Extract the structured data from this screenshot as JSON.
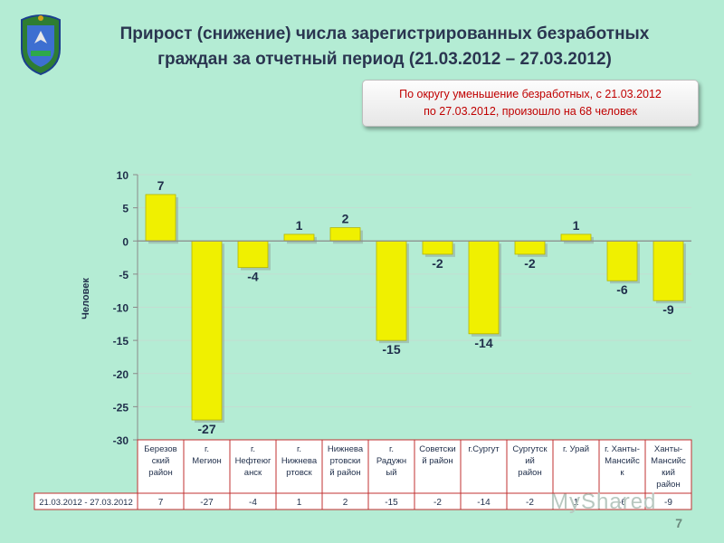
{
  "header": {
    "title_line1": "Прирост (снижение) числа зарегистрированных безработных",
    "title_line2": "граждан за отчетный период (21.03.2012 – 27.03.2012)"
  },
  "note": {
    "line1": "По округу уменьшение безработных, с 21.03.2012",
    "line2": "по 27.03.2012, произошло на 68 человек"
  },
  "page_number": "7",
  "watermark": "MyShared",
  "chart_data": {
    "type": "bar",
    "ylabel": "Человек",
    "ylim": [
      -30,
      10
    ],
    "yticks": [
      10,
      5,
      0,
      -5,
      -10,
      -15,
      -20,
      -25,
      -30
    ],
    "bar_color": "#f0f000",
    "categories": [
      [
        "Березов",
        "ский",
        "район"
      ],
      [
        "г.",
        "Мегион"
      ],
      [
        "г.",
        "Нефтеюг",
        "анск"
      ],
      [
        "г.",
        "Нижнева",
        "ртовск"
      ],
      [
        "Нижнева",
        "ртовски",
        "й район"
      ],
      [
        "г.",
        "Радужн",
        "ый"
      ],
      [
        "Советски",
        "й район"
      ],
      [
        "г.Сургут"
      ],
      [
        "Сургутск",
        "ий",
        "район"
      ],
      [
        "г. Урай"
      ],
      [
        "г. Ханты-",
        "Мансийс",
        "к"
      ],
      [
        "Ханты-",
        "Мансийс",
        "кий",
        "район"
      ]
    ],
    "values": [
      7,
      -27,
      -4,
      1,
      2,
      -15,
      -2,
      -14,
      -2,
      1,
      -6,
      -9
    ],
    "table_row_label": "21.03.2012 - 27.03.2012"
  }
}
